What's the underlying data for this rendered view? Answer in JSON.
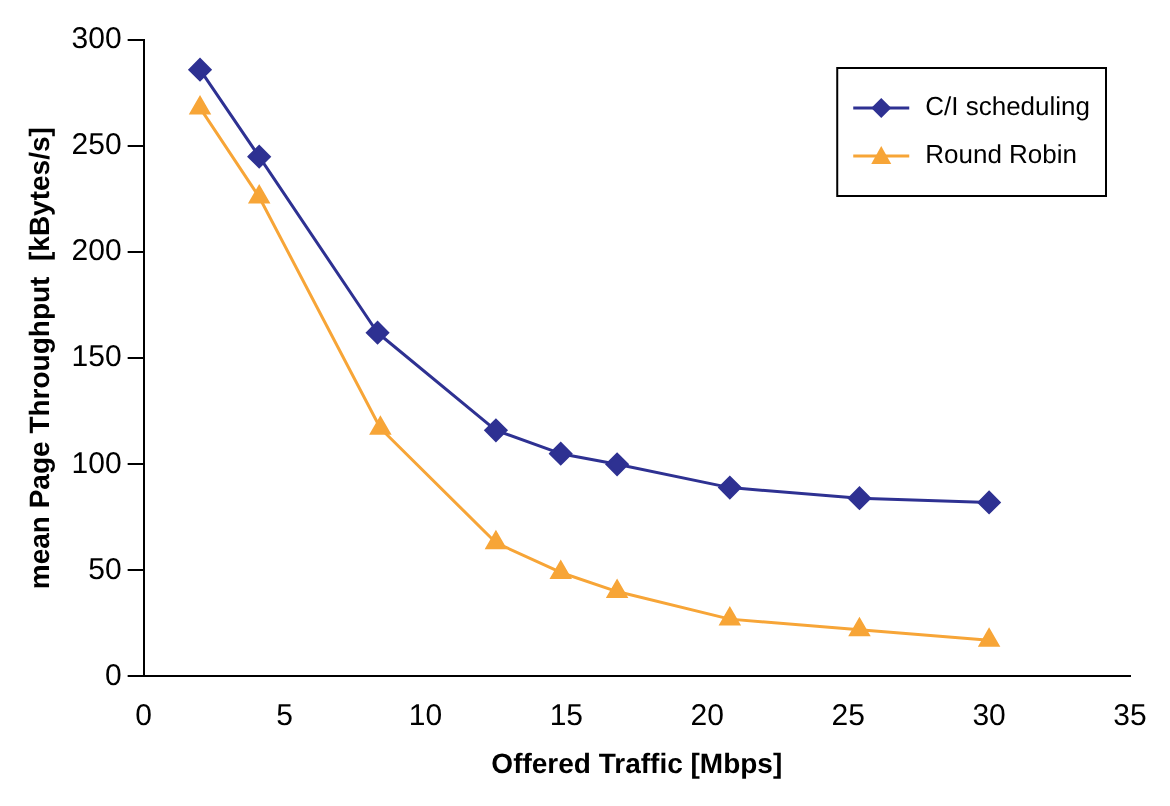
{
  "chart_data": {
    "type": "line",
    "xlabel": "Offered Traffic [Mbps]",
    "ylabel": "mean Page Throughput  [kBytes/s]",
    "xlim": [
      0,
      35
    ],
    "xticks": [
      0,
      5,
      10,
      15,
      20,
      25,
      30,
      35
    ],
    "ylim": [
      0,
      300
    ],
    "yticks": [
      0,
      50,
      100,
      150,
      200,
      250,
      300
    ],
    "grid": false,
    "legend": "top right",
    "line_style": "solid",
    "series": [
      {
        "name": "C/I scheduling",
        "color": "#2e3192",
        "marker": "diamond",
        "x": [
          2,
          4.1,
          8.3,
          12.5,
          14.8,
          16.8,
          20.8,
          25.4,
          30
        ],
        "values": [
          286,
          245,
          162,
          116,
          105,
          100,
          89,
          84,
          82
        ]
      },
      {
        "name": "Round Robin",
        "color": "#f7a537",
        "marker": "triangle",
        "x": [
          2,
          4.1,
          8.4,
          12.5,
          14.8,
          16.8,
          20.8,
          25.4,
          30
        ],
        "values": [
          268,
          226,
          117,
          63,
          49,
          40,
          27,
          22,
          17
        ]
      }
    ]
  }
}
